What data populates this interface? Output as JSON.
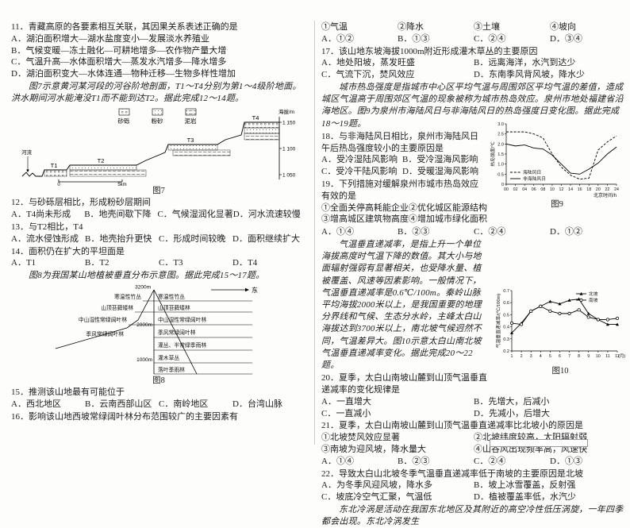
{
  "questions": {
    "q11": {
      "stem": "11．青藏高原的各要素相互关联，其因果关系表述正确的是",
      "options": [
        "A．湖泊面积增大—湖水盐度变小—发展淡水养殖业",
        "B．气候变暖—冻土融化—可耕地增多—农作物产量大增",
        "C．气温升高—水体面积增大—蒸发水汽增多—降水增多",
        "D．湖泊面积变大—水体连通—物种迁移—生物多样性增加"
      ]
    },
    "q12": {
      "stem": "12．与砂砾层相比，形成粉砂层期间",
      "options": [
        "A．T4尚未形成",
        "B．地壳间歇下降",
        "C．气候湿润化显著",
        "D．河水流速较慢"
      ]
    },
    "q13": {
      "stem": "13．与T2相比，T4",
      "options": [
        "A．流水侵蚀形成",
        "B．地壳抬升更快",
        "C．形成时间较晚",
        "D．面积继续扩大"
      ]
    },
    "q14": {
      "stem": "14．面积仍在扩大的平坦面是",
      "options": [
        "A．T1",
        "B．T2",
        "C．T3",
        "D．T4"
      ]
    },
    "q15": {
      "stem": "15．推测该山地最有可能位于",
      "options": [
        "A．西北地区",
        "B．云南西部山区",
        "C．南岭地区",
        "D．台湾山脉"
      ]
    },
    "q16": {
      "stem": "16．影响该山地西坡常绿阔叶林分布范围较广的主要因素有",
      "items": [
        "①气温",
        "②降水",
        "③土壤",
        "④坡向"
      ],
      "choices": [
        "A．①②",
        "B．①③",
        "C．②④",
        "D．③④"
      ]
    },
    "q17": {
      "stem": "17．该山地东坡海拔1000m附近形成灌木草丛的主要原因",
      "options": [
        "A．地处阳坡，蒸发旺盛",
        "B．远离海洋，水汽到达少",
        "C．气流下沉，焚风效应",
        "D．东南季风背风坡，降水少"
      ]
    },
    "q18": {
      "stem": "18．与非海陆风日相比，泉州市海陆风日午后热岛强度较小的主要原因是",
      "options": [
        "A．受冷湿陆风影响",
        "B．受冷湿海风影响",
        "C．受冷干陆风影响",
        "D．受暖湿海风影响"
      ]
    },
    "q19": {
      "stem": "19．下列措施对缓解泉州市城市热岛效应有效的是",
      "items": [
        "①全面关停高耗能企业",
        "②优化城区能源结构",
        "③增高城区建筑物高度",
        "④增加城市绿化面积"
      ],
      "choices": [
        "A．①④",
        "B．②③",
        "C．②④",
        "D．①②"
      ]
    },
    "q20": {
      "stem": "20．夏季，太白山南坡山麓到山顶气温垂直递减率的变化规律是",
      "options": [
        "A．一直增大",
        "B．先增大，后减小",
        "C．一直减小",
        "D．先减小，后增大"
      ]
    },
    "q21": {
      "stem": "21．夏季，太白山南坡山麓到山顶气温垂直递减率比北坡小的原因是",
      "items": [
        "①北坡焚风效应显著",
        "②北坡纬度较高，太阳辐射弱",
        "③南坡为迎风坡，降水量大",
        "④山谷风出现频率高，风速快"
      ],
      "choices": [
        "A．①④",
        "B．②③",
        "C．②④",
        "D．①③"
      ]
    },
    "q22": {
      "stem": "22．导致太白山北坡冬季气温垂直递减率低于南坡的主要原因是北坡",
      "options": [
        "A．为冬季风迎风坡，降水多",
        "B．坡上冰雪覆盖，反射强",
        "C．坡底冷空气汇聚，气温低",
        "D．植被覆盖率低，水汽少"
      ]
    }
  },
  "intros": {
    "i12_14": "图7示意黄河某河段的河谷阶地剖面，T1～T4分别为第1～4级阶地面。洪水期间河水能淹没T1而不能到达T2。据此完成12～14题。",
    "i15_17": "图8为我国某山地植被垂直分布示意图。据此完成15～17题。",
    "i18_19": "城市热岛强度是指城市中心区平均气温与周围郊区平均气温的差值，造成城区气温高于周围郊区气温的现象被称为城市热岛效应。泉州市地处福建省沿海地区。图9为泉州市海陆风日与非海陆风日的热岛强度日变化图。据此完成18～19题。",
    "i20_22": "气温垂直递减率，是指上升一个单位海拔高度时气温下降的数值。其大小与地面辐射强弱有显著相关，也受降水量、植被覆盖、风速等因素影响。一般情况下，气温垂直递减率是0.6℃/100m。秦岭山脉平均海拔2000米以上，是我国重要的地理分界线和气候、生态分水岭，主峰太白山海拔达到3700米以上，南北坡气候迥然不同，气温差异大。图10示意太白山南北坡气温垂直递减率变化。据此完成20～22题。",
    "i23": "东北冷涡是活动在我国东北地区及其附近的高空冷性低压涡旋，一年四季都会出现。东北冷涡发生"
  },
  "figures": {
    "fig7": {
      "caption": "图7",
      "legend": [
        "砂砾",
        "粉砂",
        "泥岩"
      ],
      "axis_label": "海拔/m",
      "ticks": [
        "1 150",
        "1 100",
        "1 050"
      ],
      "river": "河流",
      "terraces": [
        "T1",
        "T2",
        "T3",
        "T4"
      ],
      "scale_start": "0",
      "scale_end": "5km"
    },
    "fig8": {
      "caption": "图8",
      "elevations": [
        "3200m",
        "2000m",
        "1000m"
      ],
      "east_label": "东",
      "left_zones": [
        "寒温性竹丛",
        "山顶苔藓矮林",
        "中山湿性常绿阔叶林",
        "季风常绿阔叶林"
      ],
      "right_zones": [
        "寒温性竹丛",
        "山顶苔藓矮林",
        "中山湿性常绿阔叶林",
        "季风常绿阔叶林",
        "灌丛、半常绿季雨林",
        "灌木草丛",
        "落叶季雨林"
      ]
    }
  },
  "chart_data": [
    {
      "id": "fig9",
      "type": "line",
      "title": "图9",
      "xlabel": "北京时间/h",
      "ylabel": "热岛强度/℃",
      "xlabel_inline": false,
      "x": [
        0,
        2,
        4,
        6,
        8,
        10,
        12,
        14,
        16,
        18,
        20,
        22,
        24
      ],
      "xtick_labels": [
        "00",
        "02",
        "04",
        "06",
        "08",
        "10",
        "12",
        "14",
        "16",
        "18",
        "20",
        "22",
        "24"
      ],
      "ylim": [
        0,
        3
      ],
      "ystep": 0.5,
      "legend": "bl",
      "series": [
        {
          "name": "海陆风日",
          "dash": true,
          "values": [
            2.6,
            2.6,
            2.6,
            2.5,
            2.3,
            1.5,
            0.85,
            0.45,
            0.25,
            0.3,
            1.7,
            2.1,
            2.4
          ]
        },
        {
          "name": "非海陆风日",
          "dash": false,
          "values": [
            2.0,
            1.9,
            1.95,
            1.8,
            1.75,
            1.45,
            1.0,
            0.55,
            0.5,
            0.75,
            1.05,
            1.5,
            1.85
          ]
        }
      ]
    },
    {
      "id": "fig10",
      "type": "line",
      "title": "图10",
      "xlabel": "(月)",
      "ylabel": "气温垂直递减率/(℃/100m)",
      "xlabel_inline": true,
      "x": [
        1,
        2,
        3,
        4,
        5,
        6,
        7,
        8,
        9,
        10,
        11,
        12
      ],
      "xtick_labels": [
        "1",
        "2",
        "3",
        "4",
        "5",
        "6",
        "7",
        "8",
        "9",
        "10",
        "11",
        "12"
      ],
      "ylim": [
        0.2,
        0.7
      ],
      "ystep": 0.1,
      "legend": "tr",
      "series": [
        {
          "name": "北坡",
          "marker": "triangle",
          "values": [
            0.35,
            0.43,
            0.53,
            0.57,
            0.61,
            0.59,
            0.62,
            0.63,
            0.51,
            0.46,
            0.42,
            0.42
          ]
        },
        {
          "name": "南坡",
          "marker": "circle",
          "values": [
            0.43,
            0.42,
            0.53,
            0.57,
            0.53,
            0.51,
            0.51,
            0.54,
            0.48,
            0.46,
            0.46,
            0.47
          ]
        }
      ]
    }
  ]
}
